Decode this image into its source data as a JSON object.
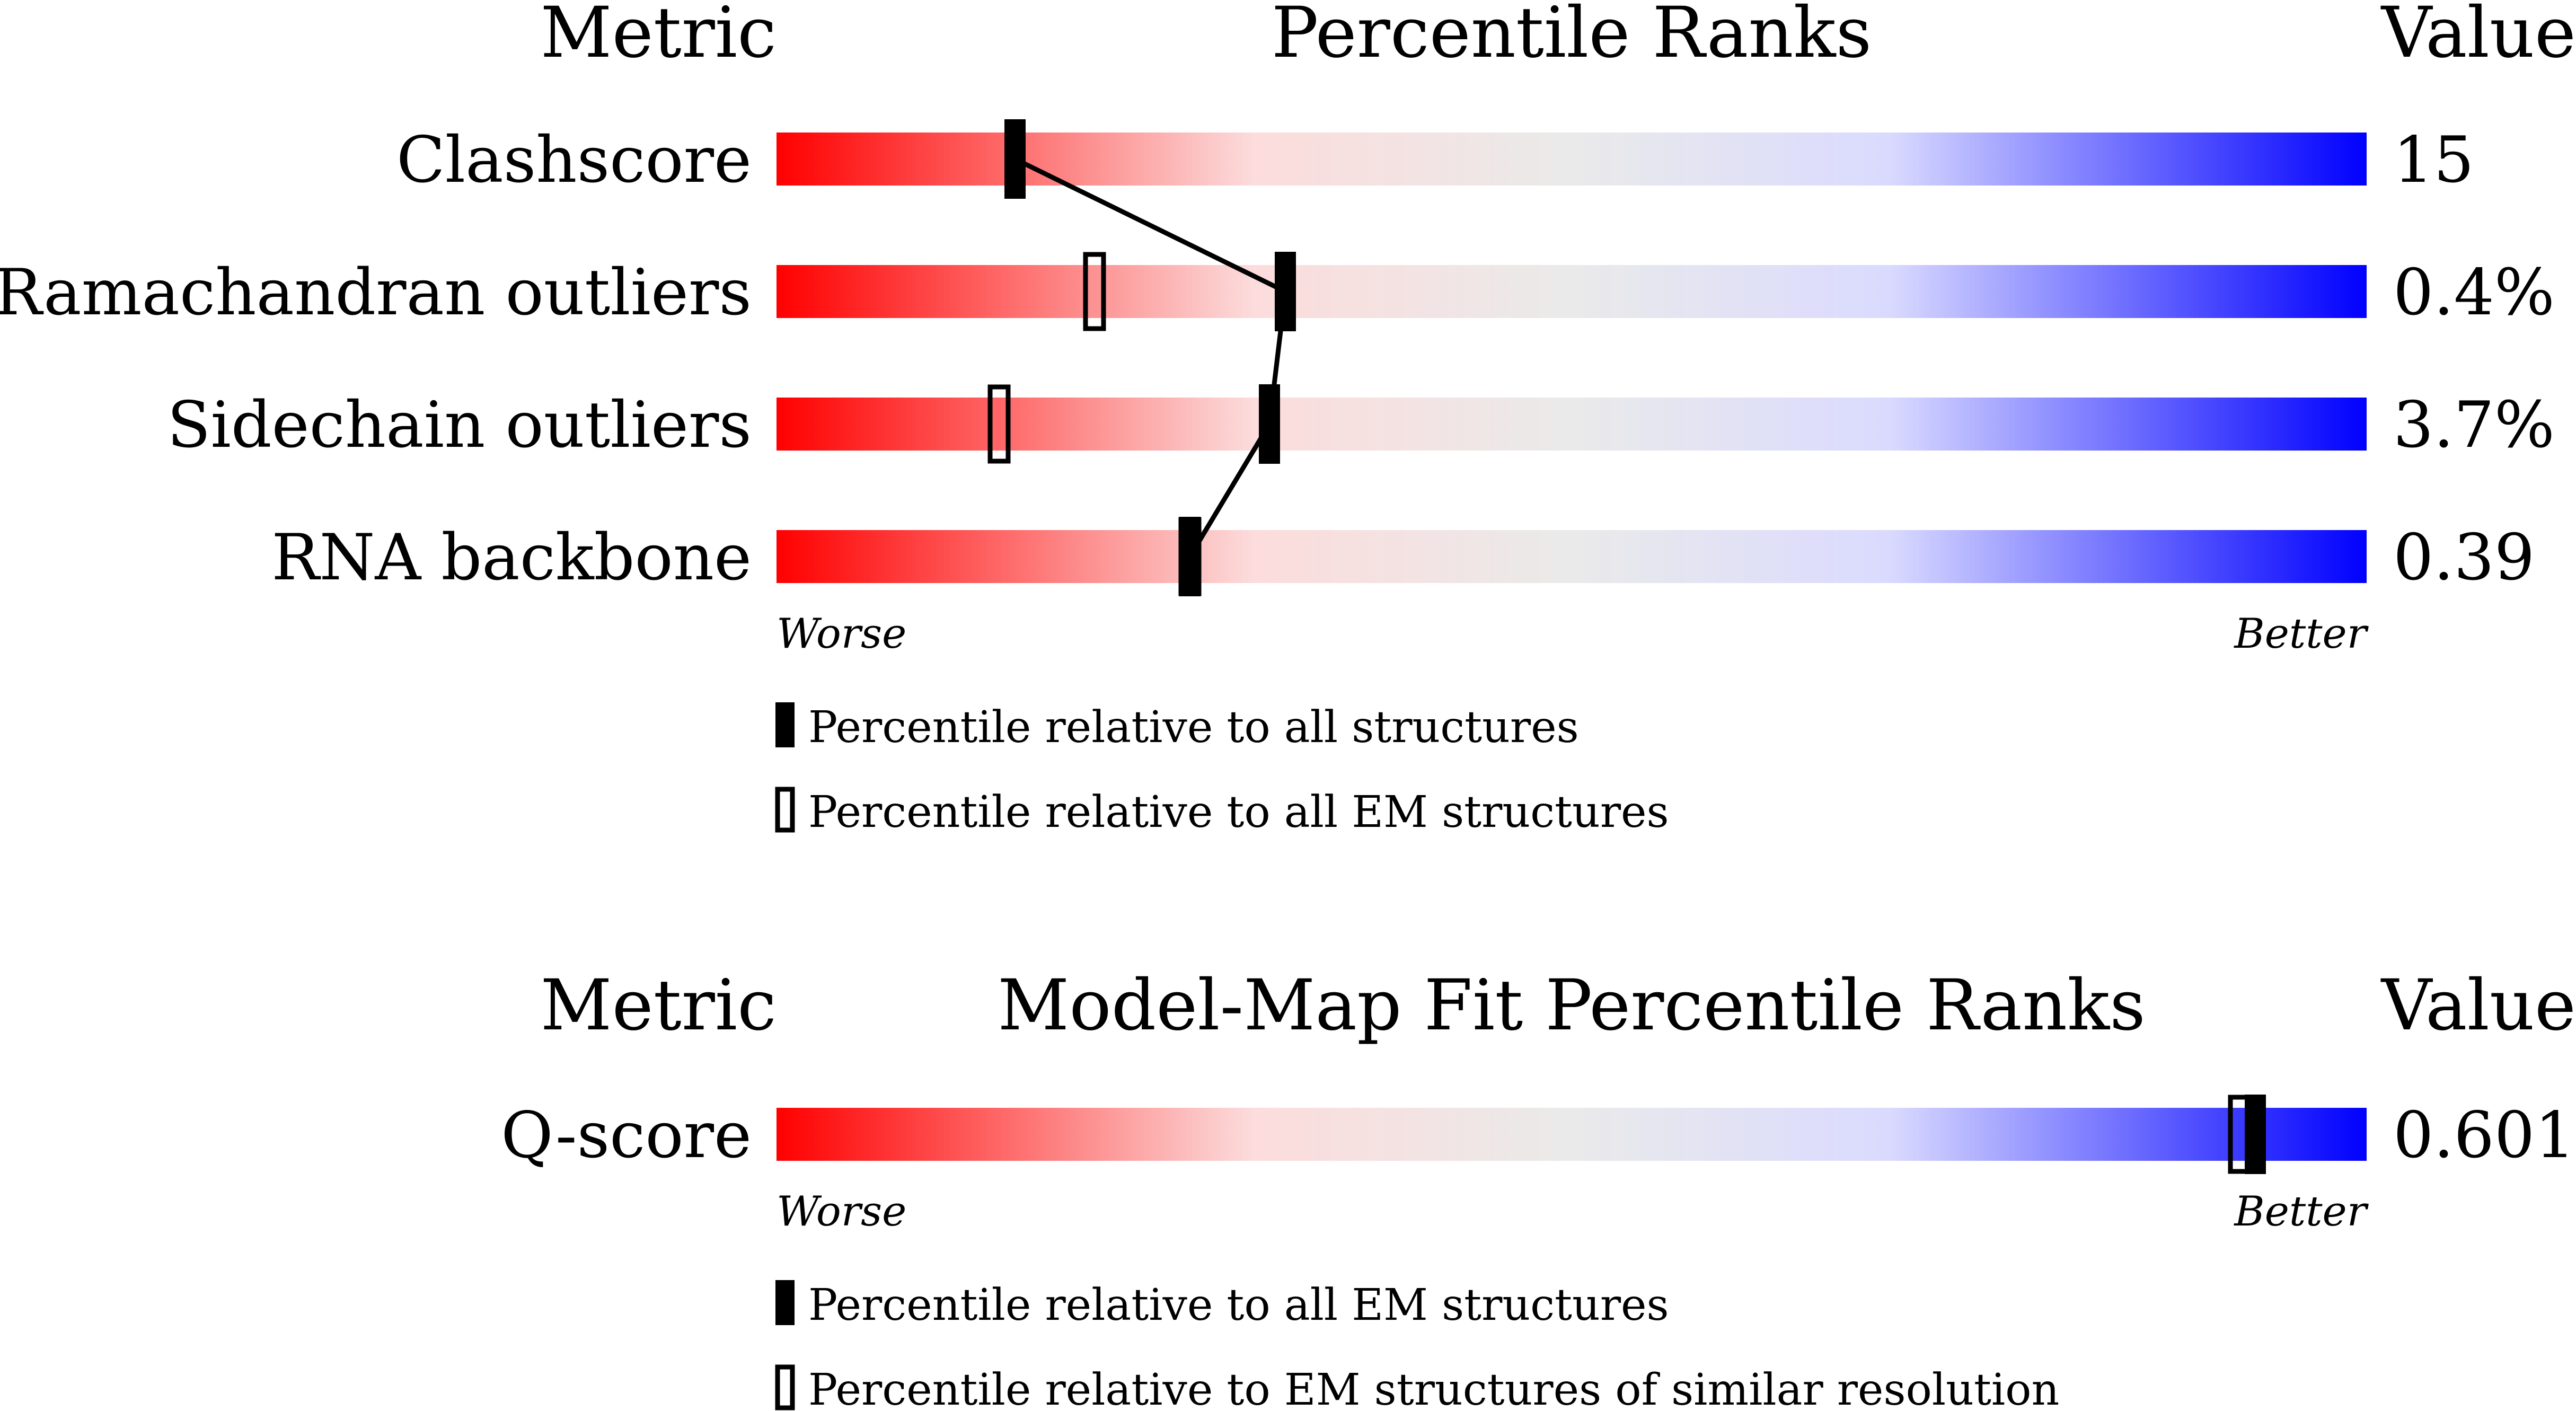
{
  "colors": {
    "worse": "#ff0000",
    "mid_light": "#fcdcdc",
    "neutral": "#eaeaea",
    "better_light": "#dadaff",
    "better": "#0000ff",
    "marker": "#000000"
  },
  "chart_data": [
    {
      "type": "percentile-rank",
      "headers": {
        "metric": "Metric",
        "title": "Percentile Ranks",
        "value": "Value"
      },
      "xlim": [
        0,
        100
      ],
      "scale_low_label": "Worse",
      "scale_high_label": "Better",
      "rows": [
        {
          "metric": "Clashscore",
          "value": "15",
          "percentile_all": 15,
          "percentile_subset": null
        },
        {
          "metric": "Ramachandran outliers",
          "value": "0.4%",
          "percentile_all": 32,
          "percentile_subset": 20
        },
        {
          "metric": "Sidechain outliers",
          "value": "3.7%",
          "percentile_all": 31,
          "percentile_subset": 14
        },
        {
          "metric": "RNA backbone",
          "value": "0.39",
          "percentile_all": 26,
          "percentile_subset": 26
        }
      ],
      "connect_all_markers": true,
      "legend": [
        {
          "marker": "filled",
          "label": "Percentile relative to all structures"
        },
        {
          "marker": "open",
          "label": "Percentile relative to all EM structures"
        }
      ]
    },
    {
      "type": "percentile-rank",
      "headers": {
        "metric": "Metric",
        "title": "Model-Map Fit Percentile Ranks",
        "value": "Value"
      },
      "xlim": [
        0,
        100
      ],
      "scale_low_label": "Worse",
      "scale_high_label": "Better",
      "rows": [
        {
          "metric": "Q-score",
          "value": "0.601",
          "percentile_all": 93,
          "percentile_subset": 92
        }
      ],
      "connect_all_markers": false,
      "legend": [
        {
          "marker": "filled",
          "label": "Percentile relative to all EM structures"
        },
        {
          "marker": "open",
          "label": "Percentile relative to EM structures of similar resolution"
        }
      ]
    }
  ]
}
